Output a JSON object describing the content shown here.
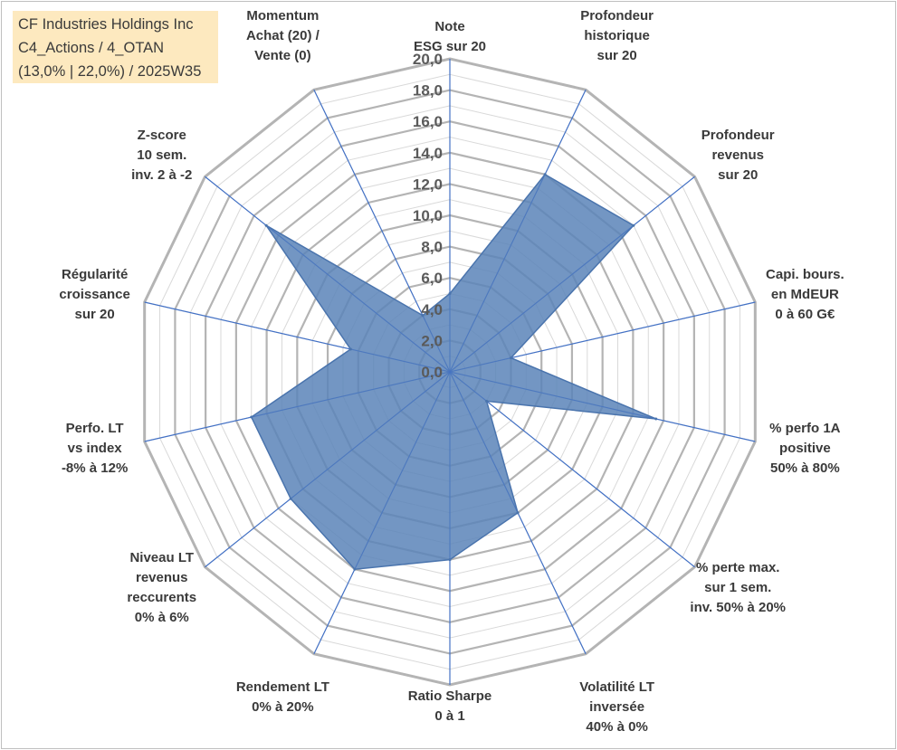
{
  "title_box": {
    "line1": "CF Industries Holdings Inc",
    "line2": "C4_Actions / 4_OTAN",
    "line3": "(13,0% | 22,0%) / 2025W35"
  },
  "colors": {
    "fill": "#5b84b8",
    "series_stroke": "#4a74ad",
    "spoke": "#4472c4",
    "grid_major": "#b4b4b4",
    "grid_minor": "#d9d9d9",
    "title_bg": "#fde9bf"
  },
  "chart_data": {
    "type": "radar",
    "rmax": 20,
    "tick_labels": [
      "0,0",
      "2,0",
      "4,0",
      "6,0",
      "8,0",
      "10,0",
      "12,0",
      "14,0",
      "16,0",
      "18,0",
      "20,0"
    ],
    "axes": [
      {
        "label": [
          "Note",
          "ESG sur 20"
        ],
        "value": 5.0
      },
      {
        "label": [
          "Profondeur",
          "historique",
          "sur 20"
        ],
        "value": 14.0
      },
      {
        "label": [
          "Profondeur",
          "revenus",
          "sur 20"
        ],
        "value": 15.0
      },
      {
        "label": [
          "Capi. bours.",
          "en MdEUR",
          "0 à 60 G€"
        ],
        "value": 4.0
      },
      {
        "label": [
          "% perfo 1A",
          "positive",
          "50% à 80%"
        ],
        "value": 13.5
      },
      {
        "label": [
          "% perte max.",
          "sur 1 sem.",
          "inv. 50% à 20%"
        ],
        "value": 3.0
      },
      {
        "label": [
          "Volatilité LT",
          "inversée",
          "40% à 0%"
        ],
        "value": 10.0
      },
      {
        "label": [
          "Ratio Sharpe",
          "0 à 1"
        ],
        "value": 12.0
      },
      {
        "label": [
          "Rendement LT",
          "0% à 20%"
        ],
        "value": 14.0
      },
      {
        "label": [
          "Niveau LT",
          "revenus",
          "reccurents",
          "0% à 6%"
        ],
        "value": 13.0
      },
      {
        "label": [
          "Perfo. LT",
          "vs index",
          "-8% à 12%"
        ],
        "value": 13.0
      },
      {
        "label": [
          "Régularité",
          "croissance",
          "sur 20"
        ],
        "value": 6.5
      },
      {
        "label": [
          "Z-score",
          "10 sem.",
          "inv. 2 à -2"
        ],
        "value": 15.0
      },
      {
        "label": [
          "Momentum",
          "Achat (20) /",
          "Vente (0)"
        ],
        "value": 4.0
      }
    ]
  }
}
